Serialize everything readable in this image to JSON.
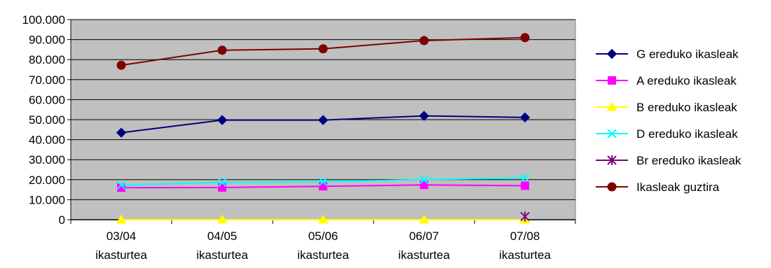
{
  "chart_data": {
    "type": "line",
    "categories": [
      "03/04 ikasturtea",
      "04/05 ikasturtea",
      "05/06 ikasturtea",
      "06/07 ikasturtea",
      "07/08 ikasturtea"
    ],
    "x_tick_lines": [
      [
        "03/04",
        "ikasturtea"
      ],
      [
        "04/05",
        "ikasturtea"
      ],
      [
        "05/06",
        "ikasturtea"
      ],
      [
        "06/07",
        "ikasturtea"
      ],
      [
        "07/08",
        "ikasturtea"
      ]
    ],
    "ylim": [
      0,
      100000
    ],
    "y_ticks": [
      {
        "value": 0,
        "label": "0"
      },
      {
        "value": 10000,
        "label": "10.000"
      },
      {
        "value": 20000,
        "label": "20.000"
      },
      {
        "value": 30000,
        "label": "30.000"
      },
      {
        "value": 40000,
        "label": "40.000"
      },
      {
        "value": 50000,
        "label": "50.000"
      },
      {
        "value": 60000,
        "label": "60.000"
      },
      {
        "value": 70000,
        "label": "70.000"
      },
      {
        "value": 80000,
        "label": "80.000"
      },
      {
        "value": 90000,
        "label": "90.000"
      },
      {
        "value": 100000,
        "label": "100.000"
      }
    ],
    "grid": true,
    "plot_background": "#c0c0c0",
    "legend_position": "right",
    "series": [
      {
        "name": "G ereduko ikasleak",
        "color": "#000080",
        "marker": "diamond",
        "values": [
          43500,
          49800,
          49800,
          51900,
          51100
        ]
      },
      {
        "name": "A ereduko ikasleak",
        "color": "#ff00ff",
        "marker": "square",
        "values": [
          16000,
          16100,
          16700,
          17400,
          17000
        ]
      },
      {
        "name": "B ereduko ikasleak",
        "color": "#ffff00",
        "marker": "triangle",
        "values": [
          0,
          0,
          0,
          0,
          0
        ]
      },
      {
        "name": "D ereduko ikasleak",
        "color": "#00ffff",
        "marker": "x",
        "values": [
          17300,
          18600,
          19000,
          20000,
          21000
        ]
      },
      {
        "name": "Br ereduko ikasleak",
        "color": "#800080",
        "marker": "asterisk",
        "values": [
          null,
          null,
          null,
          null,
          1600
        ]
      },
      {
        "name": "Ikasleak guztira",
        "color": "#800000",
        "marker": "circle",
        "values": [
          77200,
          84700,
          85400,
          89500,
          91000
        ]
      }
    ]
  }
}
